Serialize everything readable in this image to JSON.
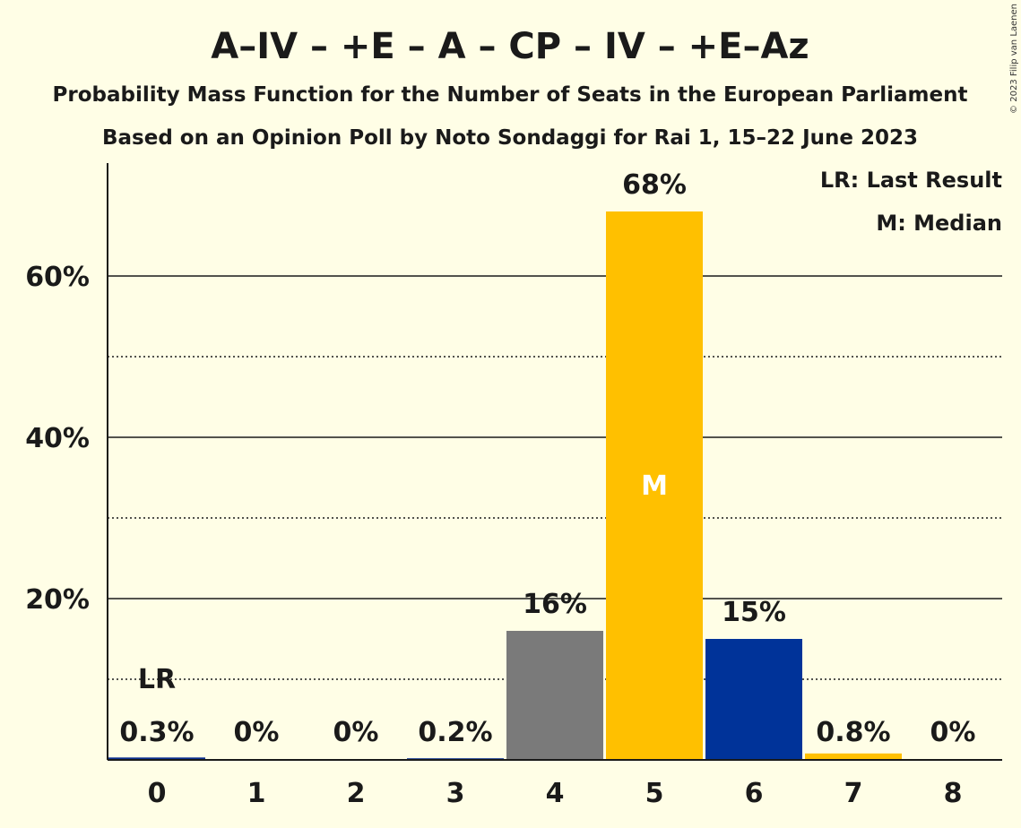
{
  "chart_data": {
    "type": "bar",
    "title": "A–IV – +E – A – CP – IV – +E–Az",
    "subtitle": "Probability Mass Function for the Number of Seats in the European Parliament",
    "subtitle2": "Based on an Opinion Poll by Noto Sondaggi for Rai 1, 15–22 June 2023",
    "copyright": "© 2023 Filip van Laenen",
    "categories": [
      "0",
      "1",
      "2",
      "3",
      "4",
      "5",
      "6",
      "7",
      "8"
    ],
    "values": [
      0.3,
      0,
      0,
      0.2,
      16,
      68,
      15,
      0.8,
      0
    ],
    "value_labels": [
      "0.3%",
      "0%",
      "0%",
      "0.2%",
      "16%",
      "68%",
      "15%",
      "0.8%",
      "0%"
    ],
    "bar_colors": [
      "#0A2F8F",
      "#0A2F8F",
      "#0A2F8F",
      "#0A2F8F",
      "#7A7A7A",
      "#FFC000",
      "#003399",
      "#FFC000",
      "#0A2F8F"
    ],
    "ylim": [
      0,
      74
    ],
    "yticks": [
      20,
      40,
      60
    ],
    "ytick_labels": [
      "20%",
      "40%",
      "60%"
    ],
    "dotted_lines": [
      10,
      30,
      50
    ],
    "last_result_index": 0,
    "last_result_marker": "LR",
    "median_index": 5,
    "median_marker": "M",
    "legend": [
      "LR: Last Result",
      "M: Median"
    ],
    "legend_position": "top-right",
    "grid": true
  }
}
